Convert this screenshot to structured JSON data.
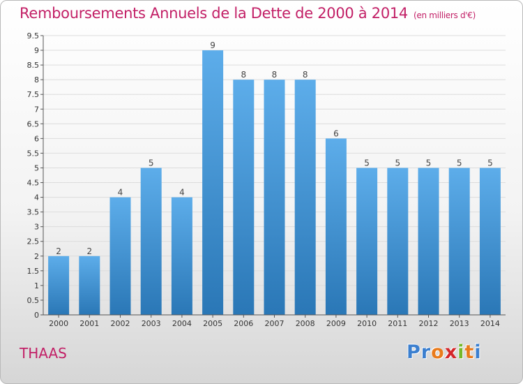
{
  "header": {
    "title": "Remboursements Annuels de la Dette de 2000 à 2014",
    "unit": "(en milliers d'€)"
  },
  "footer": {
    "commune": "THAAS",
    "logo_text": "Proxiti",
    "logo_colors": [
      "#3b7fcf",
      "#3b7fcf",
      "#e97b1c",
      "#d4262a",
      "#76b82a",
      "#e97b1c",
      "#3b7fcf"
    ]
  },
  "chart_data": {
    "type": "bar",
    "title": "Remboursements Annuels de la Dette de 2000 à 2014",
    "subtitle": "(en milliers d'€)",
    "xlabel": "",
    "ylabel": "",
    "categories": [
      "2000",
      "2001",
      "2002",
      "2003",
      "2004",
      "2005",
      "2006",
      "2007",
      "2008",
      "2009",
      "2010",
      "2011",
      "2012",
      "2013",
      "2014"
    ],
    "values": [
      2,
      2,
      4,
      5,
      4,
      9,
      8,
      8,
      8,
      6,
      5,
      5,
      5,
      5,
      5
    ],
    "value_labels": [
      "2",
      "2",
      "4",
      "5",
      "4",
      "9",
      "8",
      "8",
      "8",
      "6",
      "5",
      "5",
      "5",
      "5",
      "5"
    ],
    "ylim": [
      0,
      9.5
    ],
    "yticks": [
      "0",
      "0.5",
      "1",
      "1.5",
      "2",
      "2.5",
      "3",
      "3.5",
      "4",
      "4.5",
      "5",
      "5.5",
      "6",
      "6.5",
      "7",
      "7.5",
      "8",
      "8.5",
      "9",
      "9.5"
    ],
    "grid": true,
    "bar_color_top": "#5dadea",
    "bar_color_bottom": "#2a77b6"
  }
}
